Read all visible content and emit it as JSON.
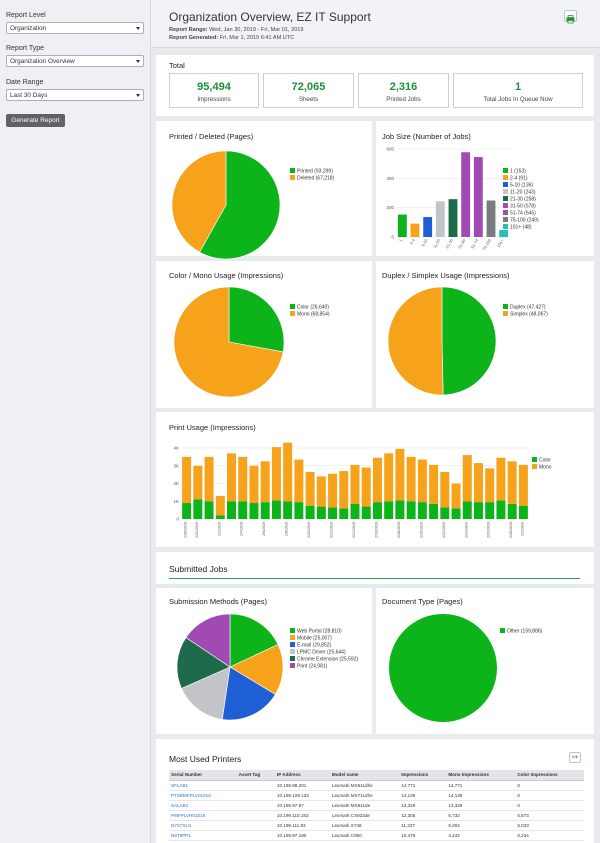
{
  "sidebar": {
    "report_level_label": "Report Level",
    "report_level_value": "Organization",
    "report_type_label": "Report Type",
    "report_type_value": "Organization Overview",
    "date_range_label": "Date Range",
    "date_range_value": "Last 30 Days",
    "generate_label": "Generate Report"
  },
  "header": {
    "title": "Organization Overview, EZ IT Support",
    "range_label": "Report Range:",
    "range_value": "Wed, Jan 30, 2019 - Fri, Mar 01, 2019",
    "generated_label": "Report Generated:",
    "generated_value": "Fri, Mar 1, 2019 6:41 AM UTC"
  },
  "totals": {
    "title": "Total",
    "items": [
      {
        "value": "95,494",
        "label": "Impressions"
      },
      {
        "value": "72,065",
        "label": "Sheets"
      },
      {
        "value": "2,316",
        "label": "Printed Jobs"
      },
      {
        "value": "1",
        "label": "Total Jobs In Queue Now"
      }
    ]
  },
  "colors": {
    "green": "#0cb319",
    "orange": "#f7a21b",
    "blue": "#1f5fd6",
    "gray": "#c2c4c8",
    "dkgreen": "#1e6b4b",
    "purple": "#a14ab3",
    "dkgray": "#7a7d80",
    "teal": "#22c3b2"
  },
  "chart_data": [
    {
      "type": "pie",
      "title": "Printed / Deleted (Pages)",
      "legend": [
        "Printed (93,299)",
        "Deleted (67,218)"
      ],
      "values": [
        93299,
        67218
      ]
    },
    {
      "type": "bar",
      "title": "Job Size (Number of Jobs)",
      "categories": [
        "1",
        "2-4",
        "5-10",
        "11-20",
        "21-30",
        "31-50",
        "51-74",
        "75-100",
        "101+"
      ],
      "values": [
        153,
        91,
        136,
        243,
        258,
        578,
        545,
        249,
        48
      ],
      "legend": [
        "1 (153)",
        "2-4 (91)",
        "5-10 (136)",
        "11-20 (243)",
        "21-30 (258)",
        "31-50 (578)",
        "51-74 (545)",
        "75-100 (249)",
        "101+ (48)"
      ],
      "yticks": [
        "600",
        "400",
        "200",
        "0"
      ],
      "ylim": [
        0,
        600
      ]
    },
    {
      "type": "pie",
      "title": "Color / Mono Usage (Impressions)",
      "legend": [
        "Color (26,640)",
        "Mono (68,854)"
      ],
      "values": [
        26640,
        68854
      ]
    },
    {
      "type": "pie",
      "title": "Duplex / Simplex Usage (Impressions)",
      "legend": [
        "Duplex (47,427)",
        "Simplex (48,067)"
      ],
      "values": [
        47427,
        48067
      ]
    },
    {
      "type": "bar",
      "title": "Print Usage (Impressions)",
      "stacked": true,
      "categories": [
        "1/30/2019",
        "1/31/2019",
        "2/1/2019",
        "2/2/2019",
        "2/3/2019",
        "2/4/2019",
        "2/5/2019",
        "2/6/2019",
        "2/7/2019",
        "2/8/2019",
        "2/9/2019",
        "2/10/2019",
        "2/11/2019",
        "2/12/2019",
        "2/13/2019",
        "2/14/2019",
        "2/15/2019",
        "2/16/2019",
        "2/17/2019",
        "2/18/2019",
        "2/19/2019",
        "2/20/2019",
        "2/21/2019",
        "2/22/2019",
        "2/23/2019",
        "2/24/2019",
        "2/25/2019",
        "2/26/2019",
        "2/27/2019",
        "2/28/2019",
        "3/1/2019"
      ],
      "xticks": [
        "1/30/2019",
        "1/31/2019",
        "2/2/2019",
        "2/4/2019",
        "2/6/2019",
        "2/8/2019",
        "2/10/2019",
        "2/12/2019",
        "2/14/2019",
        "2/16/2019",
        "2/18/2019",
        "2/20/2019",
        "2/22/2019",
        "2/24/2019",
        "2/26/2019",
        "2/28/2019",
        "3/1/2019"
      ],
      "series": [
        {
          "name": "Color",
          "values": [
            900,
            1100,
            1000,
            200,
            1000,
            1000,
            900,
            950,
            1050,
            1000,
            950,
            750,
            700,
            650,
            600,
            850,
            700,
            950,
            1000,
            1050,
            1000,
            950,
            850,
            650,
            600,
            1000,
            950,
            950,
            1050,
            850,
            750
          ]
        },
        {
          "name": "Mono",
          "values": [
            2600,
            1900,
            2500,
            1100,
            2700,
            2500,
            2100,
            2300,
            3000,
            3300,
            2400,
            1900,
            1700,
            1900,
            2100,
            2200,
            2200,
            2500,
            2700,
            2900,
            2500,
            2400,
            2200,
            2000,
            1400,
            2600,
            2200,
            1900,
            2400,
            2400,
            2300
          ]
        }
      ],
      "legend": [
        "Color",
        "Mono"
      ],
      "yticks": [
        "4K",
        "3K",
        "2K",
        "1K",
        "0"
      ],
      "ylim": [
        0,
        4000
      ]
    },
    {
      "type": "pie",
      "title": "Submission Methods (Pages)",
      "legend": [
        "Web Portal (28,810)",
        "Mobile (25,007)",
        "E-mail (29,852)",
        "LPMC Driver (25,644)",
        "Chrome Extension (25,592)",
        "Print (24,981)"
      ],
      "values": [
        28810,
        25007,
        29852,
        25644,
        25592,
        24981
      ]
    },
    {
      "type": "pie",
      "title": "Document Type (Pages)",
      "legend": [
        "Other (159,886)"
      ],
      "values": [
        159886
      ]
    }
  ],
  "submitted_title": "Submitted Jobs",
  "printers": {
    "title": "Most Used Printers",
    "columns": [
      "Serial Number",
      "Asset Tag",
      "IP Address",
      "Model name",
      "Impressions",
      "Mono Impressions",
      "Color Impressions"
    ],
    "rows": [
      [
        "SFLAB1",
        "",
        "10.199.98.201",
        "Lexmark MX511dhe",
        "14,771",
        "14,771",
        "0"
      ],
      [
        "PTSBMFPLV01010",
        "",
        "10.199.109.133",
        "Lexmark MX711dhe",
        "14,136",
        "14,136",
        "0"
      ],
      [
        "SALAB1",
        "",
        "10.199.97.87",
        "Lexmark MS911de",
        "13,329",
        "13,329",
        "0"
      ],
      [
        "PMFPLVH01015",
        "",
        "10.199.110.183",
        "Lexmark CX922de",
        "12,305",
        "5,732",
        "6,573"
      ],
      [
        "N7S7SU1",
        "",
        "10.199.111.93",
        "Lexmark X748",
        "11,337",
        "6,304",
        "5,033"
      ],
      [
        "N6T8PP1",
        "",
        "10.199.97.180",
        "Lexmark C950",
        "10,476",
        "4,242",
        "6,234"
      ]
    ]
  }
}
